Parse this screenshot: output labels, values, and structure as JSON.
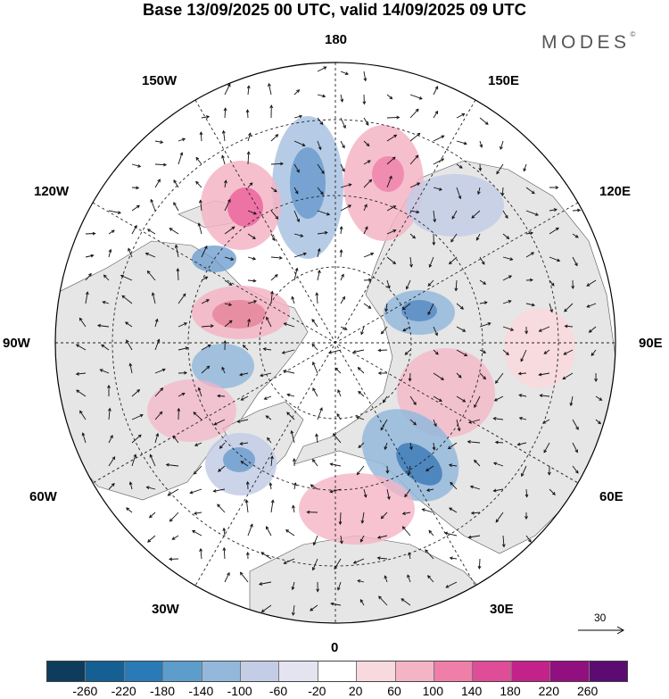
{
  "title": "Base 13/09/2025 00 UTC, valid 14/09/2025 09 UTC",
  "brand": "MODES",
  "brand_mark": "©",
  "map": {
    "projection": "north-polar-stereographic",
    "longitude_labels": {
      "top": "180",
      "top_left": "150W",
      "top_right": "150E",
      "upper_left": "120W",
      "upper_right": "120E",
      "left": "90W",
      "right": "90E",
      "lower_left": "60W",
      "lower_right": "60E",
      "bottom_left": "30W",
      "bottom_right": "30E",
      "bottom": "0"
    },
    "reference_vector": {
      "value": "30",
      "icon": "arrow-right-icon"
    },
    "land_color": "#e6e6e6",
    "anomaly_regions": [
      {
        "name": "pacific-north",
        "kind": "negative",
        "color": "#6f9fcf"
      },
      {
        "name": "beaufort",
        "kind": "positive",
        "color": "#ec6aa0"
      },
      {
        "name": "east-siberia",
        "kind": "positive",
        "color": "#f2a4bf"
      },
      {
        "name": "north-scandinavia",
        "kind": "negative",
        "color": "#5d8fc4"
      },
      {
        "name": "north-atlantic",
        "kind": "negative",
        "color": "#6f9fcf"
      },
      {
        "name": "europe",
        "kind": "positive",
        "color": "#f3b0c5"
      },
      {
        "name": "east-europe",
        "kind": "negative",
        "color": "#3f7bb8"
      },
      {
        "name": "hudson-bay",
        "kind": "positive",
        "color": "#e7889f"
      }
    ]
  },
  "colorbar": {
    "ticks": [
      "-260",
      "-220",
      "-180",
      "-140",
      "-100",
      "-60",
      "-20",
      "20",
      "60",
      "100",
      "140",
      "180",
      "220",
      "260"
    ],
    "colors": [
      "#0d3c5c",
      "#155f92",
      "#2a7ab7",
      "#5d9dcc",
      "#94b8db",
      "#c3cde6",
      "#e4e3f0",
      "#ffffff",
      "#f8d9de",
      "#f5b4c6",
      "#ef7fa9",
      "#df4c97",
      "#c2228a",
      "#920f7f",
      "#5b0b71"
    ]
  }
}
